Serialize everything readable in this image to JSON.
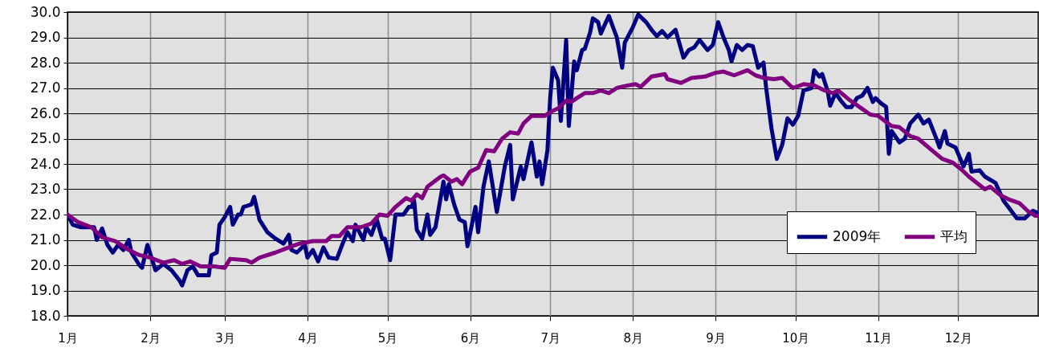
{
  "chart_data": {
    "type": "line",
    "xlim": [
      "--01-01",
      "--12-31"
    ],
    "ylim": [
      18,
      30
    ],
    "xticks": [
      {
        "value": "--01-01",
        "label": "1月"
      },
      {
        "value": "--02-01",
        "label": "2月"
      },
      {
        "value": "--03-01",
        "label": "3月"
      },
      {
        "value": "--04-01",
        "label": "4月"
      },
      {
        "value": "--05-01",
        "label": "5月"
      },
      {
        "value": "--06-01",
        "label": "6月"
      },
      {
        "value": "--07-01",
        "label": "7月"
      },
      {
        "value": "--08-01",
        "label": "8月"
      },
      {
        "value": "--09-01",
        "label": "9月"
      },
      {
        "value": "--10-01",
        "label": "10月"
      },
      {
        "value": "--11-01",
        "label": "11月"
      },
      {
        "value": "--12-01",
        "label": "12月"
      }
    ],
    "yticks": [
      {
        "value": 18,
        "label": "18.0"
      },
      {
        "value": 19,
        "label": "19.0"
      },
      {
        "value": 20,
        "label": "20.0"
      },
      {
        "value": 21,
        "label": "21.0"
      },
      {
        "value": 22,
        "label": "22.0"
      },
      {
        "value": 23,
        "label": "23.0"
      },
      {
        "value": 24,
        "label": "24.0"
      },
      {
        "value": 25,
        "label": "25.0"
      },
      {
        "value": 26,
        "label": "26.0"
      },
      {
        "value": 27,
        "label": "27.0"
      },
      {
        "value": 28,
        "label": "28.0"
      },
      {
        "value": 29,
        "label": "29.0"
      },
      {
        "value": 30,
        "label": "30.0"
      }
    ],
    "grid": true,
    "legend": "bottom right",
    "marker": "none",
    "line_style": "solid",
    "series": [
      {
        "name": "2009年",
        "color": "#000080",
        "x": [
          "--01-01",
          "--01-03",
          "--01-06",
          "--01-11",
          "--01-12",
          "--01-14",
          "--01-16",
          "--01-18",
          "--01-20",
          "--01-22",
          "--01-24",
          "--01-25",
          "--01-28",
          "--01-29",
          "--01-31",
          "--02-03",
          "--02-06",
          "--02-09",
          "--02-12",
          "--02-13",
          "--02-15",
          "--02-17",
          "--02-19",
          "--02-23",
          "--02-24",
          "--02-26",
          "--02-27",
          "--03-01",
          "--03-03",
          "--03-04",
          "--03-06",
          "--03-07",
          "--03-08",
          "--03-11",
          "--03-12",
          "--03-14",
          "--03-17",
          "--03-20",
          "--03-23",
          "--03-25",
          "--03-26",
          "--03-28",
          "--03-31",
          "--04-01",
          "--04-03",
          "--04-05",
          "--04-07",
          "--04-09",
          "--04-12",
          "--04-14",
          "--04-16",
          "--04-18",
          "--04-19",
          "--04-22",
          "--04-23",
          "--04-25",
          "--04-27",
          "--04-29",
          "--04-30",
          "--05-02",
          "--05-04",
          "--05-07",
          "--05-09",
          "--05-10",
          "--05-11",
          "--05-12",
          "--05-14",
          "--05-16",
          "--05-17",
          "--05-19",
          "--05-22",
          "--05-23",
          "--05-24",
          "--05-26",
          "--05-28",
          "--05-30",
          "--05-31",
          "--06-03",
          "--06-04",
          "--06-06",
          "--06-08",
          "--06-11",
          "--06-13",
          "--06-14",
          "--06-16",
          "--06-17",
          "--06-20",
          "--06-21",
          "--06-24",
          "--06-26",
          "--06-27",
          "--06-28",
          "--06-30",
          "--07-01",
          "--07-02",
          "--07-04",
          "--07-05",
          "--07-07",
          "--07-08",
          "--07-10",
          "--07-11",
          "--07-13",
          "--07-14",
          "--07-16",
          "--07-17",
          "--07-19",
          "--07-20",
          "--07-23",
          "--07-26",
          "--07-28",
          "--07-29",
          "--08-01",
          "--08-03",
          "--08-06",
          "--08-08",
          "--08-10",
          "--08-12",
          "--08-14",
          "--08-17",
          "--08-20",
          "--08-22",
          "--08-24",
          "--08-26",
          "--08-29",
          "--08-31",
          "--09-02",
          "--09-04",
          "--09-06",
          "--09-07",
          "--09-09",
          "--09-11",
          "--09-13",
          "--09-15",
          "--09-17",
          "--09-19",
          "--09-20",
          "--09-22",
          "--09-24",
          "--09-26",
          "--09-28",
          "--09-30",
          "--10-02",
          "--10-04",
          "--10-07",
          "--10-08",
          "--10-10",
          "--10-11",
          "--10-13",
          "--10-14",
          "--10-16",
          "--10-18",
          "--10-20",
          "--10-22",
          "--10-24",
          "--10-26",
          "--10-28",
          "--10-30",
          "--10-31",
          "--11-02",
          "--11-04",
          "--11-05",
          "--11-06",
          "--11-09",
          "--11-11",
          "--11-13",
          "--11-16",
          "--11-18",
          "--11-20",
          "--11-23",
          "--11-24",
          "--11-26",
          "--11-27",
          "--11-30",
          "--12-03",
          "--12-05",
          "--12-06",
          "--12-09",
          "--12-11",
          "--12-15",
          "--12-18",
          "--12-23",
          "--12-26",
          "--12-29",
          "--12-30",
          "--12-31"
        ],
        "values": [
          22.0,
          21.6,
          21.5,
          21.5,
          21.0,
          21.45,
          20.8,
          20.5,
          20.8,
          20.6,
          21.0,
          20.5,
          20.0,
          19.9,
          20.8,
          19.8,
          20.05,
          19.8,
          19.4,
          19.2,
          19.8,
          19.95,
          19.6,
          19.6,
          20.4,
          20.5,
          21.6,
          21.9,
          22.3,
          21.6,
          22.0,
          22.0,
          22.3,
          22.4,
          22.7,
          21.8,
          21.3,
          21.05,
          20.85,
          21.2,
          20.6,
          20.5,
          20.8,
          20.3,
          20.6,
          20.15,
          20.7,
          20.3,
          20.25,
          20.8,
          21.3,
          20.95,
          21.6,
          21.0,
          21.5,
          21.2,
          21.8,
          21.05,
          21.05,
          20.2,
          22.0,
          22.0,
          22.3,
          22.3,
          22.55,
          21.4,
          21.05,
          22.0,
          21.2,
          21.5,
          23.3,
          22.6,
          23.2,
          22.4,
          21.8,
          21.7,
          20.75,
          22.3,
          21.3,
          23.1,
          24.1,
          22.1,
          23.3,
          23.9,
          24.75,
          22.6,
          23.9,
          23.4,
          24.85,
          23.5,
          24.1,
          23.2,
          24.55,
          26.6,
          27.8,
          27.3,
          25.7,
          28.9,
          25.5,
          28.05,
          27.7,
          28.5,
          28.55,
          29.2,
          29.75,
          29.6,
          29.15,
          29.85,
          29.0,
          27.8,
          28.8,
          29.4,
          29.9,
          29.6,
          29.3,
          29.05,
          29.25,
          29.0,
          29.3,
          28.2,
          28.5,
          28.6,
          28.9,
          28.5,
          28.7,
          29.6,
          29.0,
          28.5,
          28.05,
          28.7,
          28.5,
          28.7,
          28.65,
          27.8,
          28.0,
          27.0,
          25.4,
          24.2,
          24.75,
          25.8,
          25.55,
          25.9,
          26.9,
          27.0,
          27.7,
          27.45,
          27.55,
          26.9,
          26.3,
          26.8,
          26.5,
          26.25,
          26.25,
          26.6,
          26.7,
          27.0,
          26.45,
          26.6,
          26.4,
          26.25,
          24.4,
          25.3,
          24.85,
          25.0,
          25.6,
          25.95,
          25.6,
          25.75,
          24.95,
          24.65,
          25.3,
          24.8,
          24.65,
          23.9,
          24.4,
          23.7,
          23.75,
          23.5,
          23.25,
          22.55,
          21.85,
          21.85,
          22.15,
          22.1,
          22.05
        ]
      },
      {
        "name": "平均",
        "color": "#800080",
        "x": [
          "--01-01",
          "--01-05",
          "--01-10",
          "--01-14",
          "--01-19",
          "--01-24",
          "--01-28",
          "--02-01",
          "--02-06",
          "--02-10",
          "--02-13",
          "--02-16",
          "--02-20",
          "--02-25",
          "--03-01",
          "--03-03",
          "--03-09",
          "--03-11",
          "--03-14",
          "--03-20",
          "--03-25",
          "--03-29",
          "--04-03",
          "--04-08",
          "--04-10",
          "--04-13",
          "--04-16",
          "--04-21",
          "--04-25",
          "--04-28",
          "--05-01",
          "--05-04",
          "--05-08",
          "--05-10",
          "--05-12",
          "--05-14",
          "--05-16",
          "--05-21",
          "--05-22",
          "--05-25",
          "--05-27",
          "--05-29",
          "--06-01",
          "--06-04",
          "--06-07",
          "--06-10",
          "--06-13",
          "--06-16",
          "--06-19",
          "--06-21",
          "--06-24",
          "--06-29",
          "--07-01",
          "--07-04",
          "--07-07",
          "--07-09",
          "--07-11",
          "--07-14",
          "--07-17",
          "--07-20",
          "--07-23",
          "--07-26",
          "--07-30",
          "--08-02",
          "--08-04",
          "--08-08",
          "--08-13",
          "--08-14",
          "--08-19",
          "--08-23",
          "--08-28",
          "--09-01",
          "--09-04",
          "--09-08",
          "--09-13",
          "--09-16",
          "--09-19",
          "--09-23",
          "--09-26",
          "--09-30",
          "--10-04",
          "--10-08",
          "--10-12",
          "--10-15",
          "--10-17",
          "--10-21",
          "--10-25",
          "--10-29",
          "--11-01",
          "--11-06",
          "--11-09",
          "--11-13",
          "--11-16",
          "--11-21",
          "--11-25",
          "--11-29",
          "--12-02",
          "--12-05",
          "--12-11",
          "--12-13",
          "--12-17",
          "--12-20",
          "--12-24",
          "--12-27",
          "--12-30",
          "--12-31"
        ],
        "values": [
          22.0,
          21.7,
          21.5,
          21.1,
          20.95,
          20.6,
          20.4,
          20.3,
          20.1,
          20.2,
          20.05,
          20.15,
          19.95,
          19.95,
          19.9,
          20.25,
          20.2,
          20.1,
          20.3,
          20.5,
          20.7,
          20.85,
          20.95,
          20.95,
          21.15,
          21.15,
          21.5,
          21.5,
          21.65,
          22.0,
          21.95,
          22.3,
          22.65,
          22.55,
          22.8,
          22.65,
          23.1,
          23.5,
          23.55,
          23.3,
          23.4,
          23.2,
          23.7,
          23.85,
          24.55,
          24.5,
          25.0,
          25.25,
          25.2,
          25.6,
          25.9,
          25.9,
          26.05,
          26.2,
          26.5,
          26.45,
          26.6,
          26.8,
          26.8,
          26.9,
          26.8,
          27.0,
          27.1,
          27.15,
          27.05,
          27.45,
          27.55,
          27.35,
          27.2,
          27.4,
          27.45,
          27.6,
          27.65,
          27.5,
          27.7,
          27.5,
          27.4,
          27.35,
          27.4,
          27.0,
          27.15,
          27.1,
          26.9,
          26.8,
          26.9,
          26.55,
          26.25,
          25.95,
          25.9,
          25.5,
          25.45,
          25.1,
          25.0,
          24.55,
          24.2,
          24.05,
          23.8,
          23.5,
          23.0,
          23.1,
          22.75,
          22.6,
          22.45,
          22.15,
          21.95,
          21.95
        ]
      }
    ]
  }
}
